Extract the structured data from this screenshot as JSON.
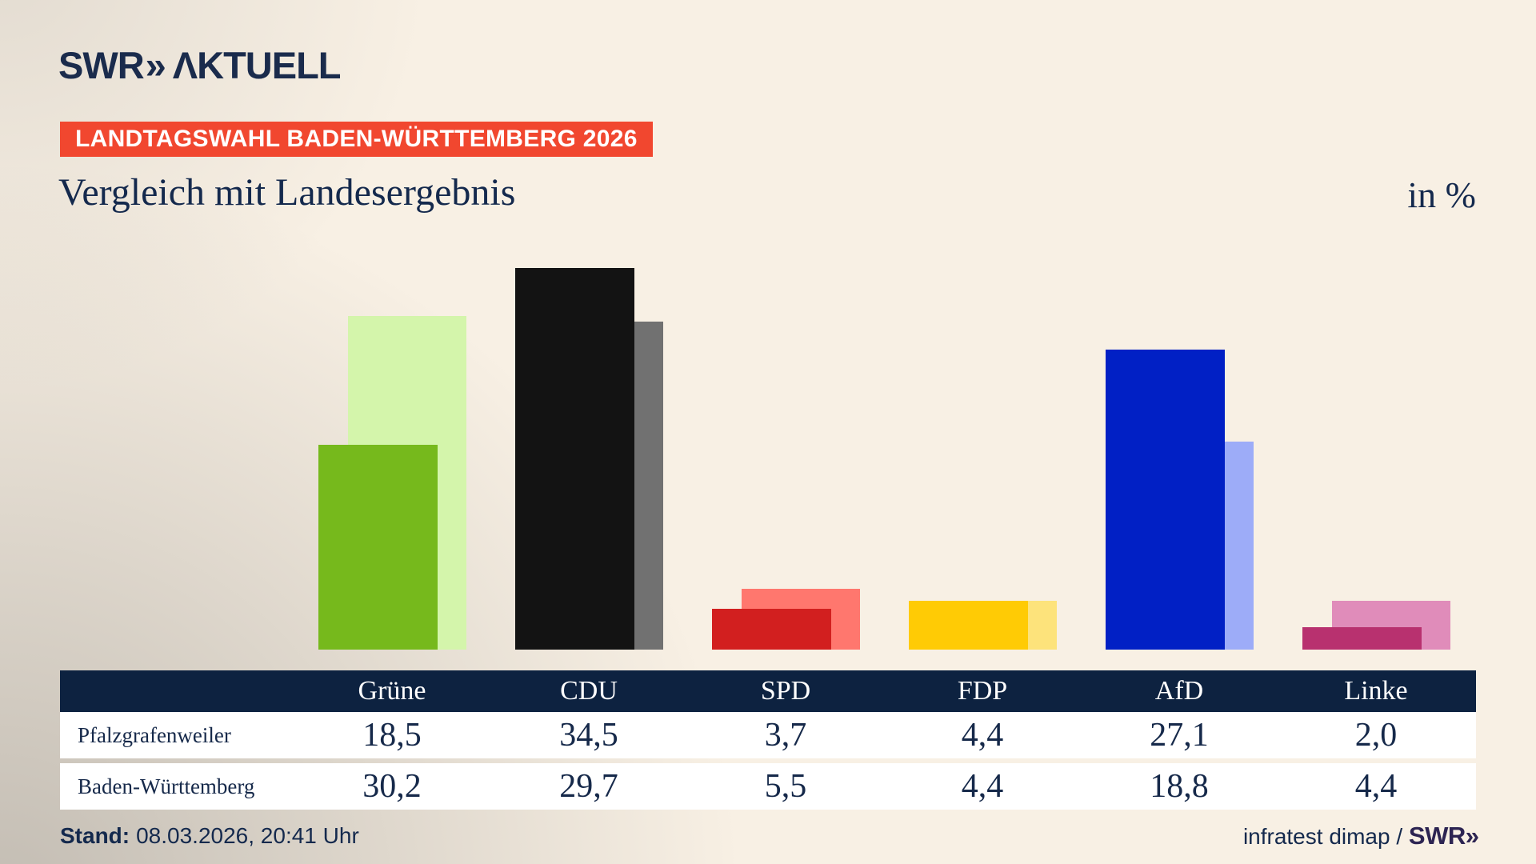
{
  "page": {
    "background_color": "#f8f0e4",
    "text_navy": "#14294d",
    "table_header_navy": "#0d2240"
  },
  "header": {
    "logo": {
      "brand": "SWR",
      "chevrons": "»",
      "suffix": "ΛKTUELL"
    },
    "banner": {
      "text": "LANDTAGSWAHL BADEN-WÜRTTEMBERG 2026",
      "color": "#f1472f"
    },
    "title": "Vergleich mit Landesergebnis",
    "unit_label": "in %"
  },
  "chart_data": {
    "type": "bar",
    "title": "Vergleich mit Landesergebnis",
    "unit": "%",
    "categories": [
      "Grüne",
      "CDU",
      "SPD",
      "FDP",
      "AfD",
      "Linke"
    ],
    "series": [
      {
        "name": "Pfalzgrafenweiler",
        "role": "foreground",
        "values": [
          18.5,
          34.5,
          3.7,
          4.4,
          27.1,
          2.0
        ],
        "display": [
          "18,5",
          "34,5",
          "3,7",
          "4,4",
          "27,1",
          "2,0"
        ]
      },
      {
        "name": "Baden-Württemberg",
        "role": "background-offset-right",
        "values": [
          30.2,
          29.7,
          5.5,
          4.4,
          18.8,
          4.4
        ],
        "display": [
          "30,2",
          "29,7",
          "5,5",
          "4,4",
          "18,8",
          "4,4"
        ]
      }
    ],
    "party_colors": [
      {
        "party": "Grüne",
        "fg": "#76b91c",
        "bg": "#d4f5ab"
      },
      {
        "party": "CDU",
        "fg": "#131313",
        "bg": "#717171"
      },
      {
        "party": "SPD",
        "fg": "#d21f1f",
        "bg": "#ff776e"
      },
      {
        "party": "FDP",
        "fg": "#ffcb05",
        "bg": "#fde37b"
      },
      {
        "party": "AfD",
        "fg": "#0120c5",
        "bg": "#9dacf8"
      },
      {
        "party": "Linke",
        "fg": "#b8316f",
        "bg": "#e08cba"
      }
    ],
    "ylim": [
      0,
      35
    ],
    "grid": false,
    "axis_labels_shown": false,
    "legend_position": "table-below-chart"
  },
  "footer": {
    "stand_label": "Stand:",
    "stand_value": "08.03.2026, 20:41 Uhr",
    "source_text": "infratest dimap / ",
    "source_logo_brand": "SWR",
    "source_logo_chevrons": "»"
  }
}
